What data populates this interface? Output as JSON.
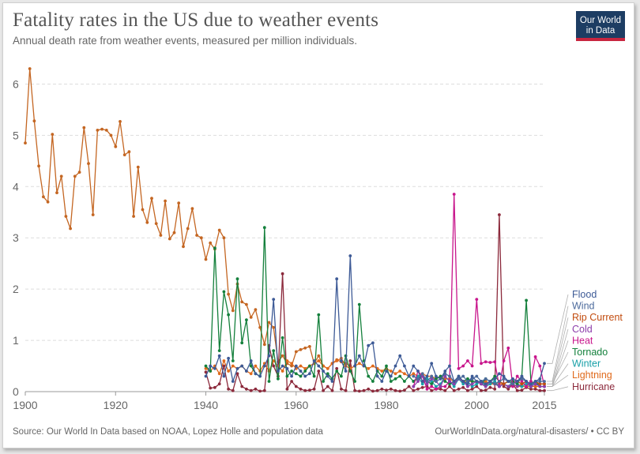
{
  "header": {
    "title": "Fatality rates in the US due to weather events",
    "subtitle": "Annual death rate from weather events, measured per million individuals."
  },
  "logo": {
    "line1": "Our World",
    "line2": "in Data",
    "bg_color": "#1d3d63",
    "accent_color": "#c8253f"
  },
  "footer": {
    "source": "Source: Our World In Data based on NOAA, Lopez Holle and population data",
    "url": "OurWorldInData.org/natural-disasters/ • CC BY"
  },
  "chart_data": {
    "type": "line",
    "xlim": [
      1900,
      2015
    ],
    "ylim": [
      0,
      6.5
    ],
    "x_ticks": [
      "1900",
      "1920",
      "1940",
      "1960",
      "1980",
      "2000",
      "2015"
    ],
    "y_ticks": [
      "0",
      "1",
      "2",
      "3",
      "4",
      "5",
      "6"
    ],
    "grid": "horizontal dashed",
    "legend_placement": "right, labels at line ends",
    "series": [
      {
        "name": "Flood",
        "color": "#3d5a96",
        "x_start": 1940,
        "values": [
          0.3,
          0.5,
          0.45,
          0.7,
          0.3,
          0.65,
          0.2,
          0.45,
          0.5,
          0.4,
          0.6,
          0.35,
          0.3,
          0.5,
          0.7,
          1.8,
          0.4,
          0.5,
          0.45,
          0.3,
          0.5,
          0.4,
          0.3,
          0.35,
          0.6,
          0.5,
          0.4,
          0.3,
          0.2,
          2.2,
          0.6,
          0.4,
          2.65,
          0.5,
          0.7,
          0.5,
          0.9,
          0.95,
          0.3,
          0.2,
          0.4,
          0.3,
          0.5,
          0.7,
          0.5,
          0.3,
          0.5,
          0.4,
          0.2,
          0.3,
          0.55,
          0.3,
          0.25,
          0.4,
          0.5,
          0.2,
          0.3,
          0.2,
          0.15,
          0.3,
          0.2,
          0.2,
          0.15,
          0.2,
          0.25,
          0.35,
          0.3,
          0.2,
          0.25,
          0.2,
          0.3,
          0.2,
          0.15,
          0.2,
          0.25,
          0.55
        ]
      },
      {
        "name": "Wind",
        "color": "#4c6a9c",
        "x_start": 1986,
        "values": [
          0.3,
          0.25,
          0.35,
          0.2,
          0.3,
          0.2,
          0.25,
          0.35,
          0.3,
          0.2,
          0.25,
          0.3,
          0.2,
          0.25,
          0.3,
          0.2,
          0.25,
          0.2,
          0.15,
          0.2,
          0.25,
          0.2,
          0.15,
          0.2,
          0.25,
          0.2,
          0.15,
          0.2,
          0.2,
          0.2
        ]
      },
      {
        "name": "Rip Current",
        "color": "#c24c0f",
        "x_start": 2002,
        "values": [
          0.15,
          0.2,
          0.15,
          0.2,
          0.15,
          0.2,
          0.15,
          0.2,
          0.15,
          0.2,
          0.15,
          0.2,
          0.15,
          0.15
        ]
      },
      {
        "name": "Cold",
        "color": "#8c3daa",
        "x_start": 1986,
        "values": [
          0.1,
          0.2,
          0.3,
          0.15,
          0.25,
          0.2,
          0.1,
          0.3,
          0.2,
          0.15,
          0.25,
          0.2,
          0.1,
          0.15,
          0.2,
          0.15,
          0.1,
          0.2,
          0.15,
          0.1,
          0.15,
          0.1,
          0.15,
          0.1,
          0.15,
          0.2,
          0.1,
          0.15,
          0.1,
          0.1
        ]
      },
      {
        "name": "Heat",
        "color": "#c8168c",
        "x_start": 1986,
        "values": [
          0.1,
          0.4,
          0.3,
          0.05,
          0.1,
          0.05,
          0.1,
          0.1,
          0.2,
          3.85,
          0.45,
          0.5,
          0.6,
          0.5,
          1.8,
          0.55,
          0.58,
          0.57,
          0.58,
          0.1,
          0.6,
          0.85,
          0.1,
          0.3,
          0.2,
          0.1,
          0.2,
          0.68,
          0.5,
          0.1
        ]
      },
      {
        "name": "Tornado",
        "color": "#14803c",
        "x_start": 1940,
        "values": [
          0.5,
          0.4,
          2.8,
          0.8,
          1.95,
          1.5,
          0.6,
          2.2,
          0.95,
          1.4,
          0.5,
          0.35,
          0.3,
          3.2,
          0.2,
          0.8,
          0.25,
          1.05,
          0.3,
          0.4,
          0.35,
          0.3,
          0.4,
          0.5,
          0.3,
          1.5,
          0.2,
          0.35,
          0.25,
          0.4,
          0.3,
          0.7,
          0.4,
          0.2,
          1.7,
          0.6,
          0.3,
          0.2,
          0.4,
          0.3,
          0.5,
          0.2,
          0.25,
          0.3,
          0.2,
          0.3,
          0.2,
          0.25,
          0.3,
          0.2,
          0.15,
          0.25,
          0.3,
          0.2,
          0.15,
          0.2,
          0.3,
          0.2,
          0.25,
          0.2,
          0.2,
          0.15,
          0.25,
          0.2,
          0.3,
          0.2,
          0.15,
          0.2,
          0.2,
          0.15,
          0.3,
          1.78,
          0.2,
          0.15,
          0.15,
          0.15
        ]
      },
      {
        "name": "Winter",
        "color": "#18a0a8",
        "x_start": 1986,
        "values": [
          0.2,
          0.3,
          0.15,
          0.25,
          0.2,
          0.1,
          0.15,
          0.3,
          0.2,
          0.1,
          0.25,
          0.15,
          0.2,
          0.1,
          0.15,
          0.2,
          0.1,
          0.15,
          0.2,
          0.1,
          0.15,
          0.1,
          0.2,
          0.15,
          0.1,
          0.15,
          0.1,
          0.2,
          0.1,
          0.1
        ]
      },
      {
        "name": "Lightning",
        "color": "#e06a1c",
        "x_start": 1940,
        "values": [
          0.45,
          0.4,
          0.5,
          0.35,
          0.6,
          0.4,
          0.5,
          0.45,
          0.5,
          0.4,
          0.35,
          0.5,
          0.4,
          0.55,
          0.4,
          0.6,
          0.5,
          0.4,
          0.6,
          0.55,
          0.45,
          0.5,
          0.45,
          0.5,
          0.55,
          0.6,
          0.5,
          0.45,
          0.55,
          0.6,
          0.65,
          0.5,
          0.45,
          0.5,
          0.55,
          0.5,
          0.45,
          0.5,
          0.45,
          0.4,
          0.45,
          0.4,
          0.35,
          0.4,
          0.35,
          0.3,
          0.35,
          0.3,
          0.35,
          0.3,
          0.3,
          0.25,
          0.3,
          0.25,
          0.25,
          0.2,
          0.25,
          0.2,
          0.2,
          0.2,
          0.2,
          0.15,
          0.2,
          0.15,
          0.15,
          0.15,
          0.15,
          0.1,
          0.15,
          0.1,
          0.1,
          0.1,
          0.1,
          0.1,
          0.1,
          0.1
        ]
      },
      {
        "name": "Hurricane",
        "color": "#8c2a3c",
        "x_start": 1940,
        "values": [
          0.38,
          0.07,
          0.08,
          0.15,
          0.5,
          0.05,
          0.02,
          0.35,
          0.1,
          0.05,
          0.02,
          0.05,
          0.01,
          0.02,
          0.9,
          0.5,
          0.3,
          2.3,
          0.05,
          0.2,
          0.1,
          0.05,
          0.02,
          0.03,
          0.05,
          0.4,
          0.02,
          0.1,
          0.02,
          0.45,
          0.05,
          0.02,
          0.6,
          0.02,
          0.01,
          0.02,
          0.05,
          0.01,
          0.02,
          0.05,
          0.03,
          0.05,
          0.02,
          0.01,
          0.03,
          0.1,
          0.02,
          0.05,
          0.08,
          0.1,
          0.02,
          0.05,
          0.05,
          0.02,
          0.1,
          0.02,
          0.05,
          0.08,
          0.02,
          0.05,
          0.1,
          0.02,
          0.03,
          0.08,
          0.05,
          3.45,
          0.1,
          0.05,
          0.15,
          0.02,
          0.03,
          0.08,
          0.05,
          0.05,
          0.02,
          0.02
        ]
      },
      {
        "name": "",
        "color": "#c46622",
        "x_start": 1900,
        "values": [
          4.85,
          6.3,
          5.28,
          4.4,
          3.8,
          3.7,
          5.02,
          3.88,
          4.2,
          3.42,
          3.18,
          4.2,
          4.28,
          5.15,
          4.45,
          3.45,
          5.1,
          5.12,
          5.1,
          5.0,
          4.78,
          5.27,
          4.62,
          4.68,
          3.42,
          4.38,
          3.55,
          3.3,
          3.77,
          3.28,
          3.05,
          3.72,
          2.98,
          3.1,
          3.68,
          2.83,
          3.18,
          3.57,
          3.05,
          3.0,
          2.58,
          2.9,
          2.78,
          3.15,
          3.0,
          1.9,
          1.58,
          2.1,
          1.75,
          1.7,
          1.45,
          1.6,
          1.25,
          0.92,
          1.35,
          1.25,
          0.58,
          0.7,
          0.55,
          0.5,
          0.78,
          0.82,
          0.85,
          0.88,
          0.55,
          0.7,
          0.5,
          0.45,
          0.55,
          0.62,
          0.58,
          0.55,
          0.5
        ]
      }
    ]
  }
}
